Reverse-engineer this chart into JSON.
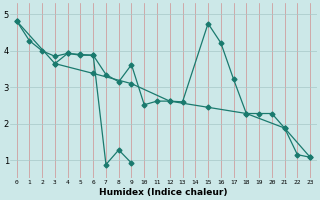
{
  "xlabel": "Humidex (Indice chaleur)",
  "bg_color": "#cce8e8",
  "line_color": "#1a7a6e",
  "grid_color_h": "#c8d8d8",
  "grid_color_v": "#e8b0b0",
  "xlim": [
    -0.5,
    23.5
  ],
  "ylim": [
    0.5,
    5.3
  ],
  "xticks": [
    0,
    1,
    2,
    3,
    4,
    5,
    6,
    7,
    8,
    9,
    10,
    11,
    12,
    13,
    14,
    15,
    16,
    17,
    18,
    19,
    20,
    21,
    22,
    23
  ],
  "yticks": [
    1,
    2,
    3,
    4,
    5
  ],
  "series1": [
    [
      0,
      4.82
    ],
    [
      1,
      4.28
    ],
    [
      2,
      4.0
    ],
    [
      3,
      3.85
    ],
    [
      4,
      3.93
    ],
    [
      5,
      3.88
    ],
    [
      6,
      3.88
    ],
    [
      7,
      3.35
    ],
    [
      8,
      3.15
    ],
    [
      9,
      3.62
    ],
    [
      10,
      2.52
    ],
    [
      11,
      2.62
    ],
    [
      12,
      2.62
    ],
    [
      13,
      2.6
    ],
    [
      15,
      4.75
    ],
    [
      16,
      4.22
    ],
    [
      17,
      3.22
    ],
    [
      18,
      2.28
    ],
    [
      19,
      2.28
    ],
    [
      20,
      2.28
    ],
    [
      21,
      1.88
    ],
    [
      22,
      1.15
    ],
    [
      23,
      1.08
    ]
  ],
  "series2": [
    [
      3,
      3.65
    ],
    [
      4,
      3.93
    ],
    [
      5,
      3.9
    ],
    [
      6,
      3.88
    ],
    [
      7,
      0.88
    ],
    [
      8,
      1.28
    ],
    [
      9,
      0.92
    ]
  ],
  "series3": [
    [
      0,
      4.82
    ],
    [
      3,
      3.65
    ],
    [
      6,
      3.38
    ],
    [
      9,
      3.1
    ],
    [
      12,
      2.62
    ],
    [
      15,
      2.45
    ],
    [
      18,
      2.28
    ],
    [
      21,
      1.88
    ],
    [
      23,
      1.08
    ]
  ]
}
